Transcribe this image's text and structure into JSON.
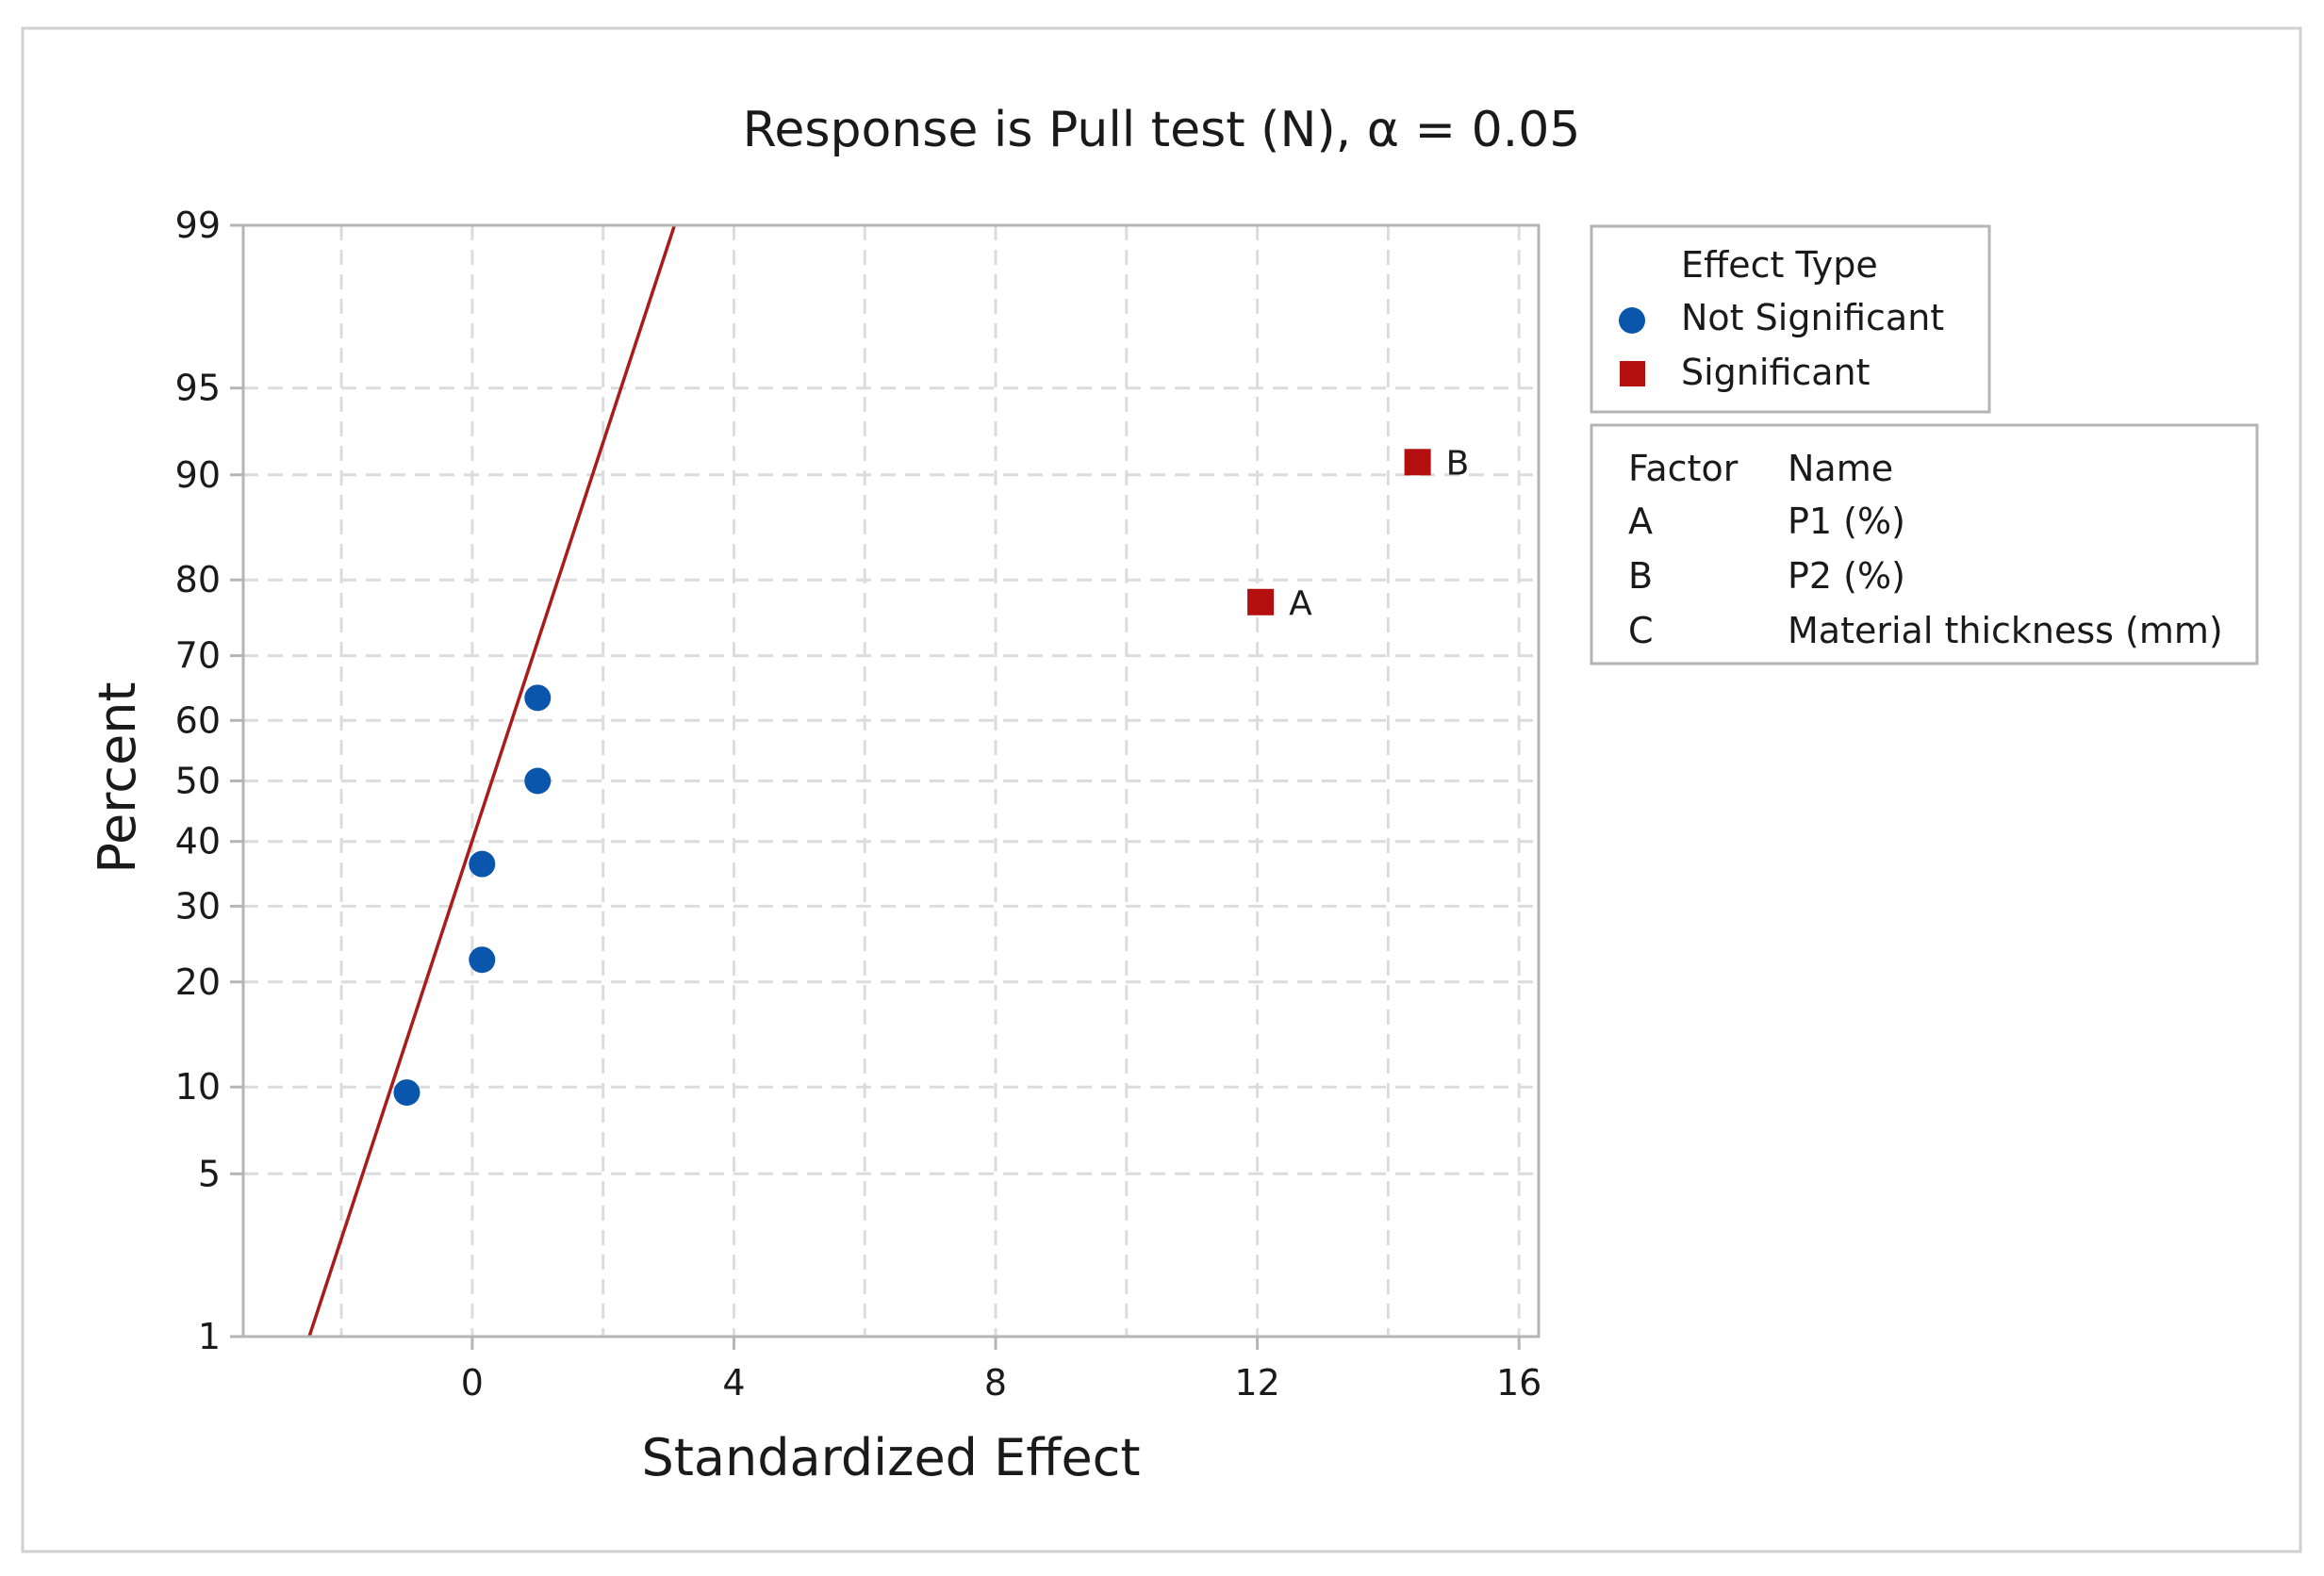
{
  "chart_data": {
    "type": "scatter",
    "title": "Response is Pull test (N), α = 0.05",
    "xlabel": "Standardized Effect",
    "ylabel": "Percent",
    "xlim": [
      -3.5,
      16.3
    ],
    "xticks": [
      0,
      4,
      8,
      12,
      16
    ],
    "x_minor_gridlines": [
      -2,
      2,
      6,
      10,
      14
    ],
    "ylim": [
      1,
      99
    ],
    "yscale": "normal-probability",
    "yticks": [
      1,
      5,
      10,
      20,
      30,
      40,
      50,
      60,
      70,
      80,
      90,
      95,
      99
    ],
    "grid": true,
    "reference_line": {
      "name": "normal reference line",
      "mean": 0.3,
      "sd": 1.2
    },
    "series": [
      {
        "name": "Not Significant",
        "marker": "circle",
        "color": "#0b56ad",
        "points": [
          {
            "x": -1.0,
            "y": 9.6,
            "label": ""
          },
          {
            "x": 0.15,
            "y": 22.7,
            "label": ""
          },
          {
            "x": 0.15,
            "y": 36.4,
            "label": ""
          },
          {
            "x": 1.0,
            "y": 50.0,
            "label": ""
          },
          {
            "x": 1.0,
            "y": 63.6,
            "label": ""
          }
        ]
      },
      {
        "name": "Significant",
        "marker": "square",
        "color": "#b40f0f",
        "points": [
          {
            "x": 12.05,
            "y": 77.3,
            "label": "A"
          },
          {
            "x": 14.45,
            "y": 90.9,
            "label": "B"
          }
        ]
      }
    ]
  },
  "legend_effect_type": {
    "title": "Effect Type",
    "items": [
      {
        "label": "Not Significant",
        "marker": "circle",
        "color": "#0b56ad"
      },
      {
        "label": "Significant",
        "marker": "square",
        "color": "#b40f0f"
      }
    ]
  },
  "legend_factors": {
    "header_factor": "Factor",
    "header_name": "Name",
    "rows": [
      {
        "factor": "A",
        "name": "P1 (%)"
      },
      {
        "factor": "B",
        "name": "P2 (%)"
      },
      {
        "factor": "C",
        "name": "Material thickness (mm)"
      }
    ]
  },
  "colors": {
    "reference_line": "#a81c1c",
    "grid": "#dcdcdc",
    "axis": "#b5b5b5",
    "frame": "#d0d0d0"
  }
}
